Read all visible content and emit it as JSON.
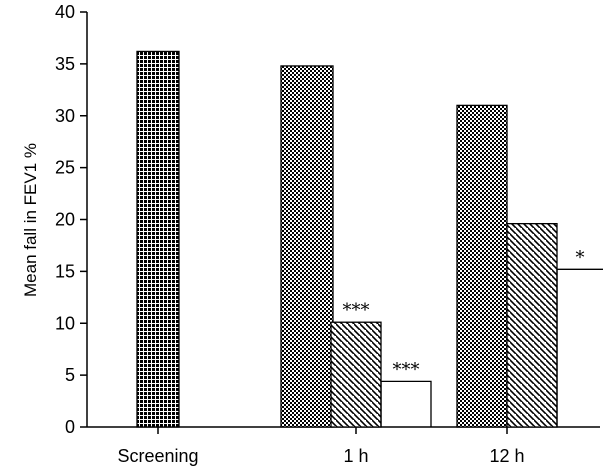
{
  "chart_data": {
    "type": "bar",
    "title": "",
    "xlabel": "",
    "ylabel": "Mean fall in FEV1 %",
    "ylim": [
      0,
      40
    ],
    "yticks": [
      0,
      5,
      10,
      15,
      20,
      25,
      30,
      35,
      40
    ],
    "categories": [
      "Screening",
      "1 h",
      "12 h"
    ],
    "grid": false,
    "bars": [
      {
        "category": "Screening",
        "pattern": "dense-checker",
        "value": 36.2,
        "annotation": ""
      },
      {
        "category": "1 h",
        "pattern": "fine-checker",
        "value": 34.8,
        "annotation": ""
      },
      {
        "category": "1 h",
        "pattern": "diagonal-hatch",
        "value": 10.1,
        "annotation": "***"
      },
      {
        "category": "1 h",
        "pattern": "open",
        "value": 4.4,
        "annotation": "***"
      },
      {
        "category": "12 h",
        "pattern": "fine-checker",
        "value": 31.0,
        "annotation": ""
      },
      {
        "category": "12 h",
        "pattern": "diagonal-hatch",
        "value": 19.6,
        "annotation": ""
      },
      {
        "category": "12 h",
        "pattern": "open",
        "value": 15.2,
        "annotation": "*"
      }
    ]
  }
}
